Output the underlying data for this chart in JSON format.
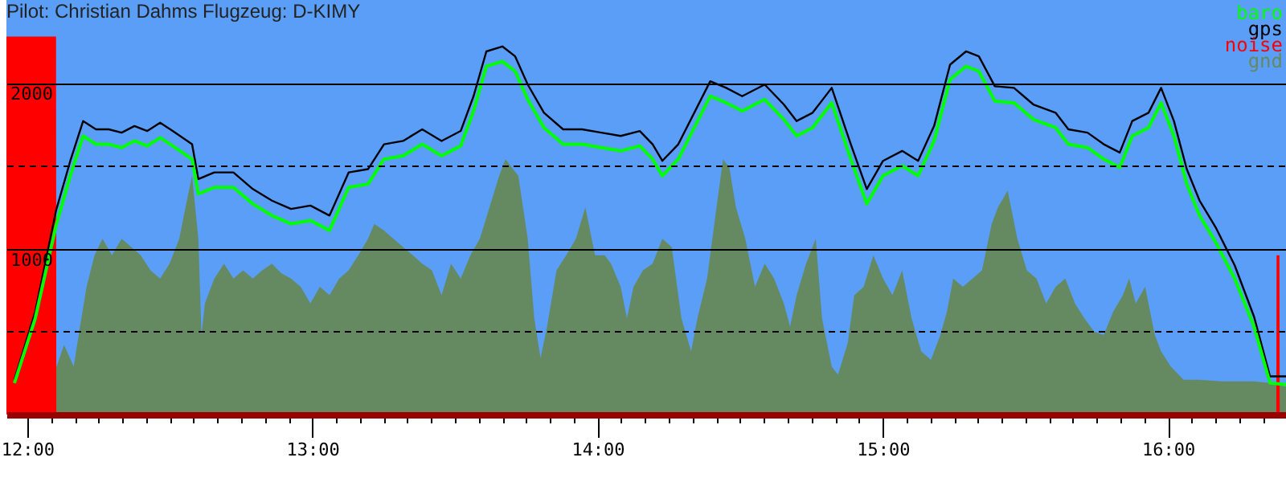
{
  "chart_data": {
    "type": "line",
    "title": "Pilot: Christian Dahms Flugzeug: D-KIMY",
    "xlim": [
      11.927,
      16.414
    ],
    "ylim": [
      0,
      2500
    ],
    "yticks": [
      {
        "value": 500,
        "label": null
      },
      1000,
      {
        "value": 1500,
        "label": null
      },
      2000
    ],
    "xticks": [
      {
        "value": 12,
        "label": "12:00"
      },
      {
        "value": 12.083,
        "label": null
      },
      {
        "value": 12.167,
        "label": null
      },
      {
        "value": 12.25,
        "label": null
      },
      {
        "value": 12.333,
        "label": null
      },
      {
        "value": 12.417,
        "label": null
      },
      {
        "value": 12.5,
        "label": null
      },
      {
        "value": 12.583,
        "label": null
      },
      {
        "value": 12.667,
        "label": null
      },
      {
        "value": 12.75,
        "label": null
      },
      {
        "value": 12.833,
        "label": null
      },
      {
        "value": 12.917,
        "label": null
      },
      {
        "value": 13,
        "label": "13:00"
      },
      {
        "value": 13.083,
        "label": null
      },
      {
        "value": 13.167,
        "label": null
      },
      {
        "value": 13.25,
        "label": null
      },
      {
        "value": 13.333,
        "label": null
      },
      {
        "value": 13.417,
        "label": null
      },
      {
        "value": 13.5,
        "label": null
      },
      {
        "value": 13.583,
        "label": null
      },
      {
        "value": 13.667,
        "label": null
      },
      {
        "value": 13.75,
        "label": null
      },
      {
        "value": 13.833,
        "label": null
      },
      {
        "value": 13.917,
        "label": null
      },
      {
        "value": 14,
        "label": "14:00"
      },
      {
        "value": 14.083,
        "label": null
      },
      {
        "value": 14.167,
        "label": null
      },
      {
        "value": 14.25,
        "label": null
      },
      {
        "value": 14.333,
        "label": null
      },
      {
        "value": 14.417,
        "label": null
      },
      {
        "value": 14.5,
        "label": null
      },
      {
        "value": 14.583,
        "label": null
      },
      {
        "value": 14.667,
        "label": null
      },
      {
        "value": 14.75,
        "label": null
      },
      {
        "value": 14.833,
        "label": null
      },
      {
        "value": 14.917,
        "label": null
      },
      {
        "value": 15,
        "label": "15:00"
      },
      {
        "value": 15.083,
        "label": null
      },
      {
        "value": 15.167,
        "label": null
      },
      {
        "value": 15.25,
        "label": null
      },
      {
        "value": 15.333,
        "label": null
      },
      {
        "value": 15.417,
        "label": null
      },
      {
        "value": 15.5,
        "label": null
      },
      {
        "value": 15.583,
        "label": null
      },
      {
        "value": 15.667,
        "label": null
      },
      {
        "value": 15.75,
        "label": null
      },
      {
        "value": 15.833,
        "label": null
      },
      {
        "value": 15.917,
        "label": null
      },
      {
        "value": 16,
        "label": "16:00"
      },
      {
        "value": 16.083,
        "label": null
      },
      {
        "value": 16.167,
        "label": null
      },
      {
        "value": 16.25,
        "label": null
      },
      {
        "value": 16.333,
        "label": null
      }
    ],
    "grid": "y",
    "legend": "top right",
    "x": [
      11.955,
      12.028,
      12.101,
      12.151,
      12.196,
      12.241,
      12.286,
      12.331,
      12.376,
      12.421,
      12.466,
      12.51,
      12.578,
      12.6,
      12.656,
      12.723,
      12.791,
      12.858,
      12.925,
      12.993,
      13.06,
      13.127,
      13.195,
      13.251,
      13.318,
      13.385,
      13.453,
      13.52,
      13.565,
      13.61,
      13.666,
      13.711,
      13.755,
      13.812,
      13.879,
      13.946,
      14.013,
      14.081,
      14.148,
      14.193,
      14.227,
      14.283,
      14.339,
      14.395,
      14.451,
      14.507,
      14.586,
      14.653,
      14.698,
      14.754,
      14.821,
      14.888,
      14.944,
      15.001,
      15.068,
      15.124,
      15.18,
      15.236,
      15.292,
      15.337,
      15.393,
      15.46,
      15.528,
      15.606,
      15.651,
      15.718,
      15.775,
      15.831,
      15.875,
      15.932,
      15.976,
      16.021,
      16.066,
      16.111,
      16.167,
      16.234,
      16.302,
      16.358,
      16.414
    ],
    "series": [
      {
        "name": "baro",
        "color": "#00ff00",
        "values": [
          190,
          580,
          1140,
          1440,
          1680,
          1630,
          1630,
          1610,
          1650,
          1620,
          1670,
          1620,
          1540,
          1330,
          1370,
          1370,
          1270,
          1200,
          1150,
          1170,
          1110,
          1370,
          1390,
          1540,
          1560,
          1630,
          1560,
          1620,
          1830,
          2100,
          2130,
          2070,
          1900,
          1730,
          1630,
          1630,
          1610,
          1590,
          1620,
          1540,
          1440,
          1540,
          1730,
          1920,
          1880,
          1830,
          1900,
          1780,
          1680,
          1730,
          1880,
          1540,
          1270,
          1440,
          1500,
          1440,
          1650,
          2020,
          2100,
          2070,
          1890,
          1880,
          1780,
          1730,
          1630,
          1610,
          1540,
          1490,
          1680,
          1730,
          1880,
          1680,
          1390,
          1200,
          1040,
          820,
          530,
          190,
          180
        ]
      },
      {
        "name": "gps",
        "color": "#000000",
        "values": [
          210,
          620,
          1230,
          1530,
          1770,
          1720,
          1720,
          1700,
          1740,
          1710,
          1760,
          1710,
          1630,
          1420,
          1460,
          1460,
          1360,
          1290,
          1240,
          1260,
          1200,
          1460,
          1480,
          1630,
          1650,
          1720,
          1650,
          1710,
          1920,
          2190,
          2220,
          2160,
          1990,
          1820,
          1720,
          1720,
          1700,
          1680,
          1710,
          1630,
          1530,
          1630,
          1820,
          2010,
          1970,
          1920,
          1990,
          1870,
          1770,
          1820,
          1970,
          1630,
          1360,
          1530,
          1590,
          1530,
          1740,
          2110,
          2190,
          2160,
          1980,
          1970,
          1870,
          1820,
          1720,
          1700,
          1630,
          1580,
          1770,
          1820,
          1970,
          1770,
          1480,
          1290,
          1130,
          900,
          590,
          230,
          230
        ]
      },
      {
        "name": "noise",
        "type": "area",
        "color": "#ff0000",
        "x": [
          11.927,
          12.101,
          12.102,
          16.38,
          16.381,
          16.391,
          16.392,
          16.414
        ],
        "values": [
          2280,
          2280,
          0,
          0,
          960,
          960,
          0,
          0
        ]
      },
      {
        "name": "gnd",
        "type": "area",
        "color": "#658a62",
        "x": [
          11.927,
          12.101,
          12.129,
          12.163,
          12.185,
          12.208,
          12.236,
          12.264,
          12.297,
          12.331,
          12.365,
          12.398,
          12.432,
          12.466,
          12.499,
          12.533,
          12.555,
          12.578,
          12.6,
          12.611,
          12.623,
          12.656,
          12.69,
          12.723,
          12.757,
          12.791,
          12.824,
          12.858,
          12.892,
          12.925,
          12.959,
          12.993,
          13.026,
          13.06,
          13.094,
          13.127,
          13.161,
          13.195,
          13.217,
          13.251,
          13.284,
          13.318,
          13.352,
          13.385,
          13.419,
          13.453,
          13.486,
          13.52,
          13.554,
          13.587,
          13.621,
          13.655,
          13.677,
          13.699,
          13.722,
          13.755,
          13.778,
          13.8,
          13.823,
          13.856,
          13.89,
          13.924,
          13.957,
          13.991,
          14.025,
          14.047,
          14.081,
          14.103,
          14.126,
          14.159,
          14.193,
          14.227,
          14.26,
          14.294,
          14.328,
          14.35,
          14.384,
          14.417,
          14.44,
          14.462,
          14.485,
          14.518,
          14.552,
          14.586,
          14.619,
          14.653,
          14.675,
          14.698,
          14.731,
          14.765,
          14.787,
          14.821,
          14.843,
          14.877,
          14.9,
          14.933,
          14.967,
          15.001,
          15.034,
          15.068,
          15.101,
          15.135,
          15.169,
          15.202,
          15.225,
          15.247,
          15.281,
          15.315,
          15.348,
          15.382,
          15.404,
          15.438,
          15.472,
          15.505,
          15.539,
          15.573,
          15.606,
          15.64,
          15.674,
          15.707,
          15.741,
          15.775,
          15.808,
          15.842,
          15.864,
          15.887,
          15.92,
          15.954,
          15.976,
          16.01,
          16.055,
          16.111,
          16.19,
          16.302,
          16.358,
          16.414
        ],
        "values": [
          190,
          280,
          420,
          290,
          530,
          770,
          960,
          1060,
          960,
          1060,
          1010,
          960,
          870,
          820,
          910,
          1060,
          1250,
          1440,
          1060,
          480,
          670,
          820,
          910,
          820,
          870,
          820,
          870,
          910,
          850,
          820,
          770,
          670,
          770,
          720,
          820,
          870,
          960,
          1060,
          1150,
          1110,
          1060,
          1010,
          960,
          910,
          870,
          720,
          910,
          820,
          960,
          1060,
          1250,
          1440,
          1540,
          1490,
          1440,
          1060,
          580,
          340,
          530,
          870,
          960,
          1060,
          1250,
          960,
          960,
          910,
          770,
          580,
          770,
          870,
          910,
          1060,
          1010,
          580,
          380,
          580,
          820,
          1250,
          1540,
          1490,
          1250,
          1060,
          770,
          910,
          820,
          670,
          530,
          720,
          910,
          1060,
          580,
          290,
          240,
          430,
          720,
          770,
          960,
          820,
          720,
          870,
          580,
          380,
          330,
          480,
          620,
          820,
          770,
          820,
          870,
          1150,
          1250,
          1350,
          1060,
          870,
          820,
          670,
          770,
          820,
          670,
          580,
          500,
          480,
          620,
          720,
          820,
          670,
          770,
          480,
          380,
          290,
          210,
          210,
          200,
          200,
          190,
          170
        ]
      }
    ]
  }
}
